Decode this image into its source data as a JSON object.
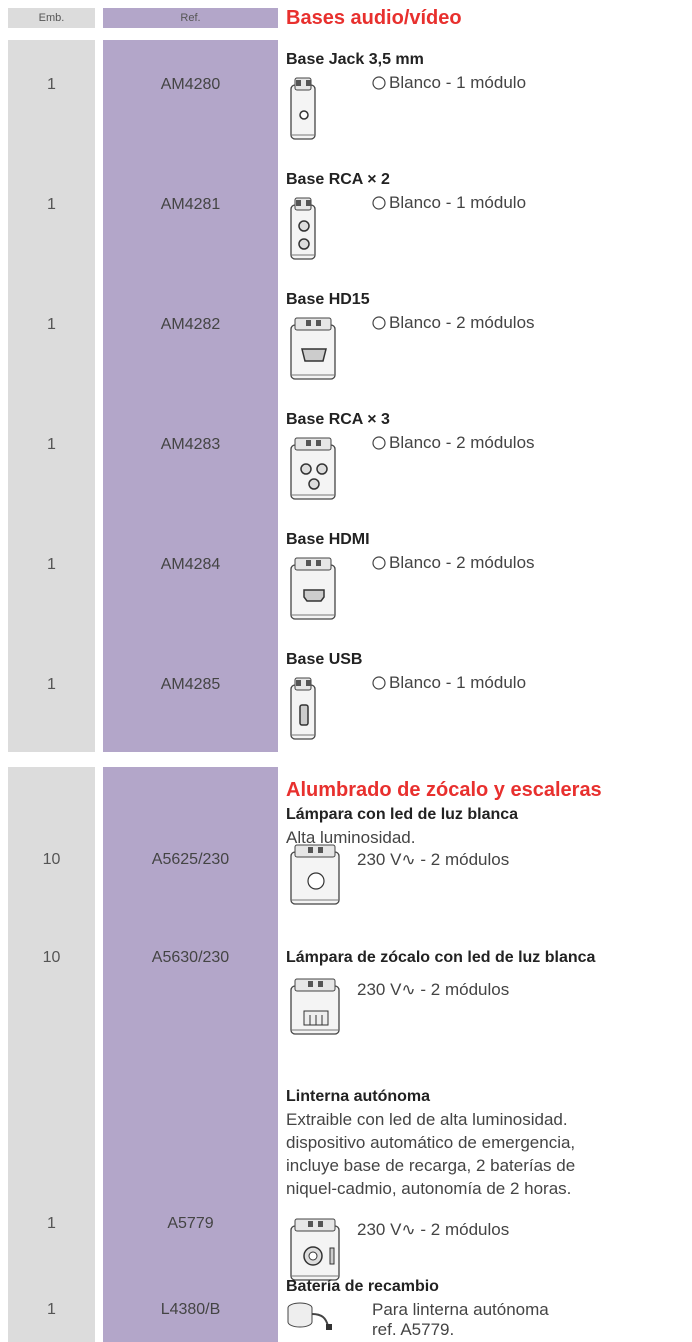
{
  "header": {
    "emb": "Emb.",
    "ref": "Ref."
  },
  "sections": [
    {
      "title": "Bases audio/vídeo",
      "items": [
        {
          "emb": "1",
          "ref": "AM4280",
          "name": "Base Jack 3,5 mm",
          "spec": "Blanco - 1 módulo"
        },
        {
          "emb": "1",
          "ref": "AM4281",
          "name": "Base RCA × 2",
          "spec": "Blanco - 1 módulo"
        },
        {
          "emb": "1",
          "ref": "AM4282",
          "name": "Base HD15",
          "spec": "Blanco - 2 módulos"
        },
        {
          "emb": "1",
          "ref": "AM4283",
          "name": "Base RCA × 3",
          "spec": "Blanco - 2 módulos"
        },
        {
          "emb": "1",
          "ref": "AM4284",
          "name": "Base HDMI",
          "spec": "Blanco - 2 módulos"
        },
        {
          "emb": "1",
          "ref": "AM4285",
          "name": "Base USB",
          "spec": "Blanco - 1 módulo"
        }
      ]
    },
    {
      "title": "Alumbrado de zócalo y escaleras",
      "items": [
        {
          "emb": "10",
          "ref": "A5625/230",
          "name": "Lámpara con led de luz blanca",
          "description": [
            "Alta luminosidad."
          ],
          "spec": [
            "230 V∿ - 2 módulos"
          ]
        },
        {
          "emb": "10",
          "ref": "A5630/230",
          "name": "Lámpara de zócalo con led de luz blanca",
          "spec": [
            "230 V∿ - 2 módulos"
          ]
        },
        {
          "emb": "1",
          "ref": "A5779",
          "name": "Linterna autónoma",
          "description": [
            "Extraible con led de alta luminosidad.",
            "dispositivo automático de emergencia,",
            "incluye base de recarga, 2 baterías de",
            "niquel-cadmio, autonomía de 2 horas."
          ],
          "spec": [
            "230 V∿ - 2 módulos"
          ]
        },
        {
          "emb": "1",
          "ref": "L4380/B",
          "name": "Batería de recambio",
          "spec": [
            "Para linterna autónoma",
            "ref. A5779."
          ]
        }
      ]
    }
  ]
}
